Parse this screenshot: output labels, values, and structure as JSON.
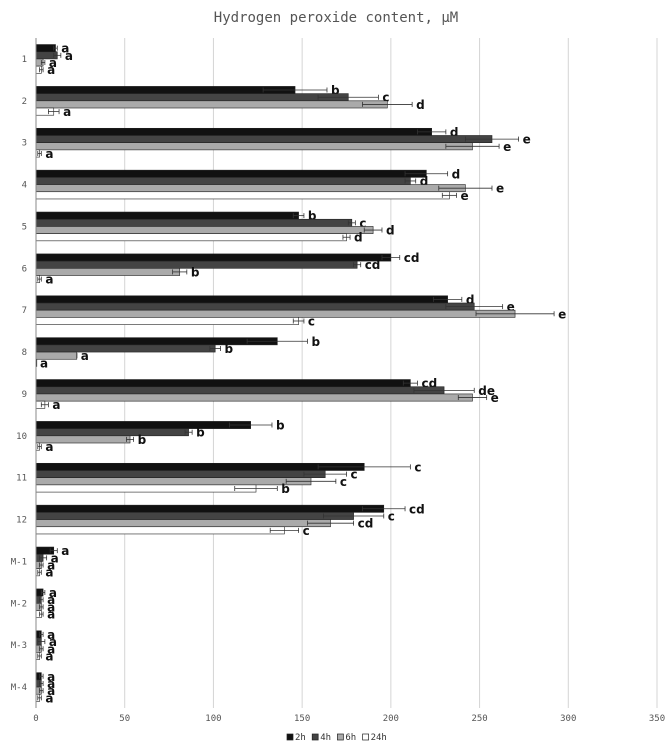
{
  "chart_data": {
    "type": "bar",
    "orientation": "horizontal",
    "title": "Hydrogen peroxide content, µM",
    "xlabel": "",
    "ylabel": "",
    "xlim": [
      0,
      350
    ],
    "xticks": [
      0,
      50,
      100,
      150,
      200,
      250,
      300,
      350
    ],
    "grid": true,
    "legend_position": "bottom",
    "categories": [
      "1",
      "2",
      "3",
      "4",
      "5",
      "6",
      "7",
      "8",
      "9",
      "10",
      "11",
      "12",
      "M-1",
      "M-2",
      "M-3",
      "M-4"
    ],
    "series": [
      {
        "name": "2h",
        "color": "#111111",
        "values": [
          11,
          146,
          223,
          220,
          148,
          200,
          232,
          136,
          211,
          121,
          185,
          196,
          10,
          4,
          3,
          3
        ],
        "errors": [
          1,
          18,
          8,
          12,
          3,
          5,
          8,
          17,
          4,
          12,
          26,
          12,
          2,
          1,
          1,
          1
        ],
        "labels": [
          "a",
          "b",
          "d",
          "d",
          "b",
          "cd",
          "d",
          "b",
          "cd",
          "b",
          "c",
          "cd",
          "a",
          "a",
          "a",
          "a"
        ]
      },
      {
        "name": "4h",
        "color": "#444444",
        "values": [
          12,
          176,
          257,
          211,
          178,
          181,
          247,
          101,
          230,
          86,
          163,
          179,
          4,
          3,
          3,
          3
        ],
        "errors": [
          2,
          17,
          15,
          3,
          2,
          2,
          16,
          3,
          17,
          2,
          12,
          17,
          2,
          1,
          2,
          1
        ],
        "labels": [
          "a",
          "c",
          "e",
          "d",
          "c",
          "cd",
          "e",
          "b",
          "de",
          "b",
          "c",
          "c",
          "a",
          "a",
          "a",
          "a"
        ]
      },
      {
        "name": "6h",
        "color": "#aaaaaa",
        "values": [
          4,
          198,
          246,
          242,
          190,
          81,
          270,
          23,
          246,
          53,
          155,
          166,
          3,
          3,
          3,
          3
        ],
        "errors": [
          1,
          14,
          15,
          15,
          5,
          4,
          22,
          0,
          8,
          2,
          14,
          13,
          1,
          1,
          1,
          1
        ],
        "labels": [
          "a",
          "d",
          "e",
          "e",
          "d",
          "b",
          "e",
          "a",
          "e",
          "b",
          "c",
          "cd",
          "a",
          "a",
          "a",
          "a"
        ]
      },
      {
        "name": "24h",
        "color": "#ffffff",
        "values": [
          3,
          10,
          2,
          233,
          175,
          2,
          148,
          0,
          5,
          2,
          124,
          140,
          2,
          3,
          2,
          2
        ],
        "errors": [
          1,
          3,
          1,
          4,
          2,
          1,
          3,
          0,
          2,
          1,
          12,
          8,
          1,
          1,
          1,
          1
        ],
        "labels": [
          "a",
          "a",
          "a",
          "e",
          "d",
          "a",
          "c",
          "a",
          "a",
          "a",
          "b",
          "c",
          "a",
          "a",
          "a",
          "a"
        ]
      }
    ]
  }
}
